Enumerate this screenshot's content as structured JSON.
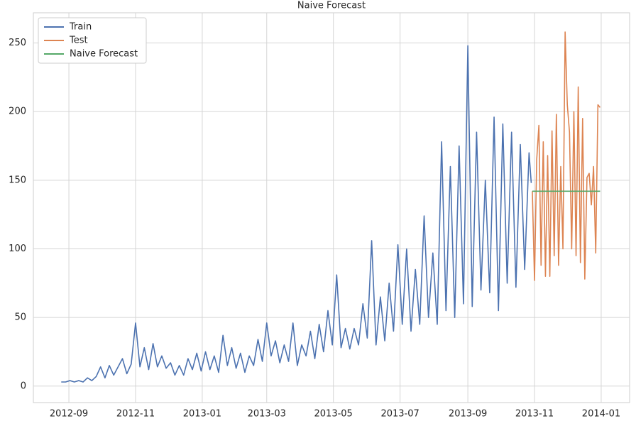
{
  "chart_data": {
    "type": "line",
    "title": "Naive Forecast",
    "xlim": [
      -32.5,
      513
    ],
    "ylim": [
      -12,
      272
    ],
    "xticks": [
      {
        "value": 0,
        "label": "2012-09"
      },
      {
        "value": 61,
        "label": "2012-11"
      },
      {
        "value": 122,
        "label": "2013-01"
      },
      {
        "value": 181,
        "label": "2013-03"
      },
      {
        "value": 242,
        "label": "2013-05"
      },
      {
        "value": 303,
        "label": "2013-07"
      },
      {
        "value": 365,
        "label": "2013-09"
      },
      {
        "value": 426,
        "label": "2013-11"
      },
      {
        "value": 487,
        "label": "2014-01"
      }
    ],
    "yticks": [
      0,
      50,
      100,
      150,
      200,
      250
    ],
    "grid": true,
    "legend": "upper-left",
    "series": [
      {
        "name": "Train",
        "color": "#4c72b0",
        "x": [
          -7,
          -3,
          1,
          5,
          9,
          13,
          17,
          21,
          25,
          29,
          33,
          37,
          41,
          45,
          49,
          53,
          57,
          61,
          65,
          69,
          73,
          77,
          81,
          85,
          89,
          93,
          97,
          101,
          105,
          109,
          113,
          117,
          121,
          125,
          129,
          133,
          137,
          141,
          145,
          149,
          153,
          157,
          161,
          165,
          169,
          173,
          177,
          181,
          185,
          189,
          193,
          197,
          201,
          205,
          209,
          213,
          217,
          221,
          225,
          229,
          233,
          237,
          241,
          245,
          249,
          253,
          257,
          261,
          265,
          269,
          273,
          277,
          281,
          285,
          289,
          293,
          297,
          301,
          305,
          309,
          313,
          317,
          321,
          325,
          329,
          333,
          337,
          341,
          345,
          349,
          353,
          357,
          361,
          365,
          369,
          373,
          377,
          381,
          385,
          389,
          393,
          397,
          401,
          405,
          409,
          413,
          417,
          421,
          423
        ],
        "values": [
          3,
          3,
          4,
          3,
          4,
          3,
          6,
          4,
          7,
          14,
          6,
          15,
          8,
          14,
          20,
          9,
          16,
          46,
          14,
          28,
          12,
          31,
          14,
          22,
          13,
          17,
          8,
          15,
          8,
          20,
          12,
          24,
          11,
          25,
          12,
          22,
          10,
          37,
          15,
          28,
          13,
          24,
          10,
          22,
          15,
          34,
          18,
          46,
          22,
          33,
          17,
          30,
          18,
          46,
          15,
          30,
          22,
          40,
          20,
          45,
          25,
          55,
          30,
          81,
          28,
          42,
          27,
          42,
          30,
          60,
          35,
          106,
          30,
          65,
          33,
          75,
          40,
          103,
          45,
          100,
          40,
          85,
          45,
          124,
          50,
          97,
          45,
          178,
          55,
          160,
          50,
          175,
          60,
          248,
          58,
          185,
          70,
          150,
          68,
          196,
          55,
          191,
          75,
          185,
          72,
          176,
          85,
          170,
          148
        ]
      },
      {
        "name": "Test",
        "color": "#dd8452",
        "x": [
          424,
          426,
          428,
          430,
          432,
          434,
          436,
          438,
          440,
          442,
          444,
          446,
          448,
          450,
          452,
          454,
          456,
          458,
          460,
          462,
          464,
          466,
          468,
          470,
          472,
          474,
          476,
          478,
          480,
          482,
          484,
          486
        ],
        "values": [
          142,
          77,
          165,
          190,
          88,
          178,
          80,
          168,
          80,
          186,
          95,
          198,
          88,
          160,
          100,
          258,
          205,
          185,
          100,
          200,
          95,
          218,
          90,
          195,
          78,
          152,
          155,
          132,
          160,
          97,
          205,
          203
        ]
      },
      {
        "name": "Naive Forecast",
        "color": "#55a868",
        "x": [
          424,
          486
        ],
        "values": [
          142,
          142
        ]
      }
    ]
  }
}
